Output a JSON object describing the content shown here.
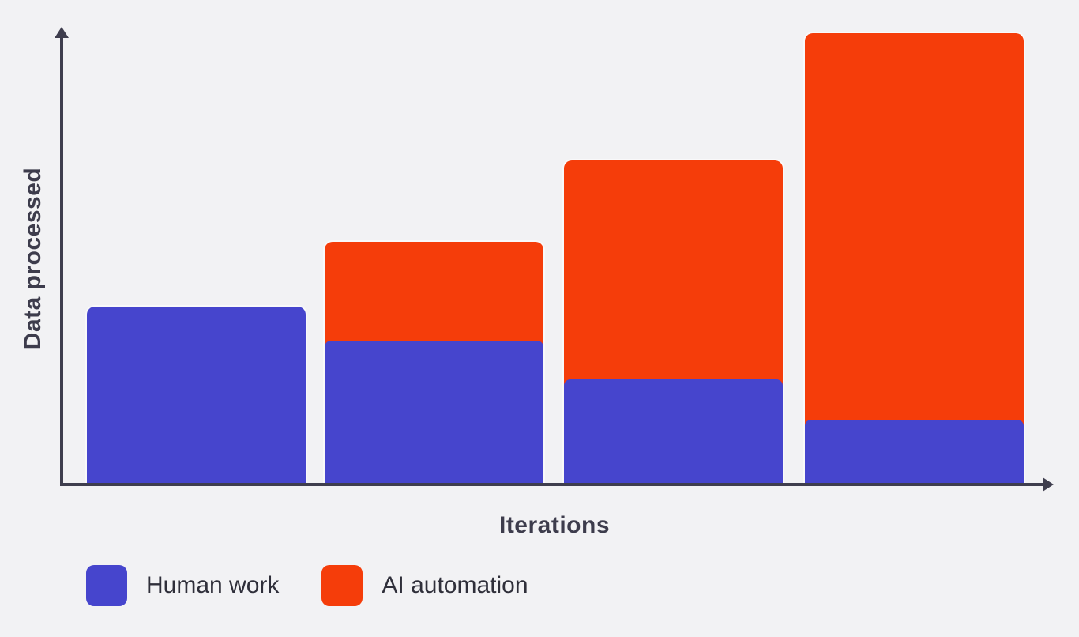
{
  "colors": {
    "background": "#f2f2f4",
    "axis": "#3f3e4e",
    "label_text": "#3d3c4c",
    "legend_text": "#2f2f3a",
    "human_work": "#4645cd",
    "ai_automation": "#f53d0a"
  },
  "chart_data": {
    "type": "bar",
    "stacked": true,
    "title": "",
    "xlabel": "Iterations",
    "ylabel": "Data processed",
    "categories": [
      "",
      "",
      "",
      ""
    ],
    "series": [
      {
        "name": "Human work",
        "color": "#4645cd",
        "values": [
          39.4,
          31.9,
          23.3,
          14.4
        ]
      },
      {
        "name": "AI automation",
        "color": "#f53d0a",
        "values": [
          0,
          21.9,
          48.5,
          85.6
        ]
      }
    ],
    "ylim": [
      0,
      100
    ],
    "grid": false,
    "axis_tick_labels": false,
    "legend_position": "bottom-left",
    "value_units": "relative share of y-axis height (no numeric ticks shown)"
  },
  "legend": {
    "items": [
      {
        "label": "Human work",
        "color": "#4645cd"
      },
      {
        "label": "AI automation",
        "color": "#f53d0a"
      }
    ]
  }
}
